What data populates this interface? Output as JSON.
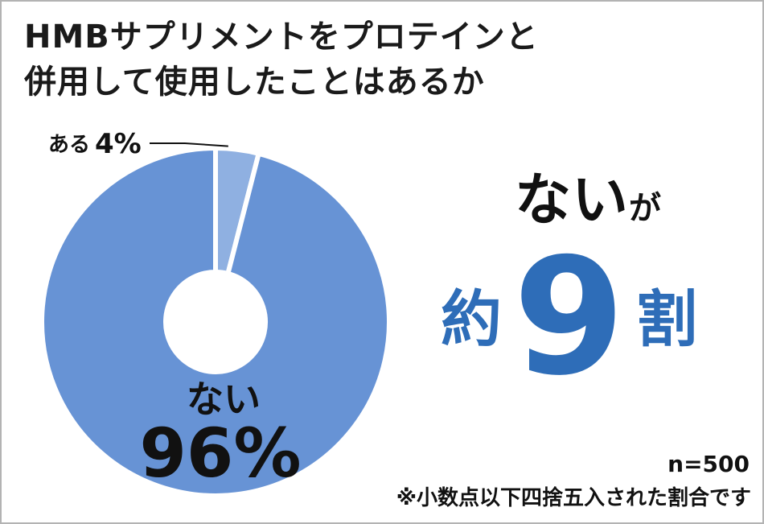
{
  "title_lines": [
    "HMBサプリメントをプロテインと",
    "併用して使用したことはあるか"
  ],
  "chart_data": {
    "type": "pie",
    "title": "HMBサプリメントをプロテインと併用して使用したことはあるか",
    "slices": [
      {
        "label": "ある",
        "value": 4,
        "value_label": "4%",
        "color": "#8fb0e1"
      },
      {
        "label": "ない",
        "value": 96,
        "value_label": "96%",
        "color": "#6793d5"
      }
    ],
    "unit": "%",
    "n_label": "n=500"
  },
  "highlight": {
    "line1": "ない",
    "line1_suffix": "が",
    "prefix": "約",
    "number": "9",
    "suffix": "割",
    "accent_color": "#2e6db8"
  },
  "footnote": "※小数点以下四捨五入された割合です"
}
